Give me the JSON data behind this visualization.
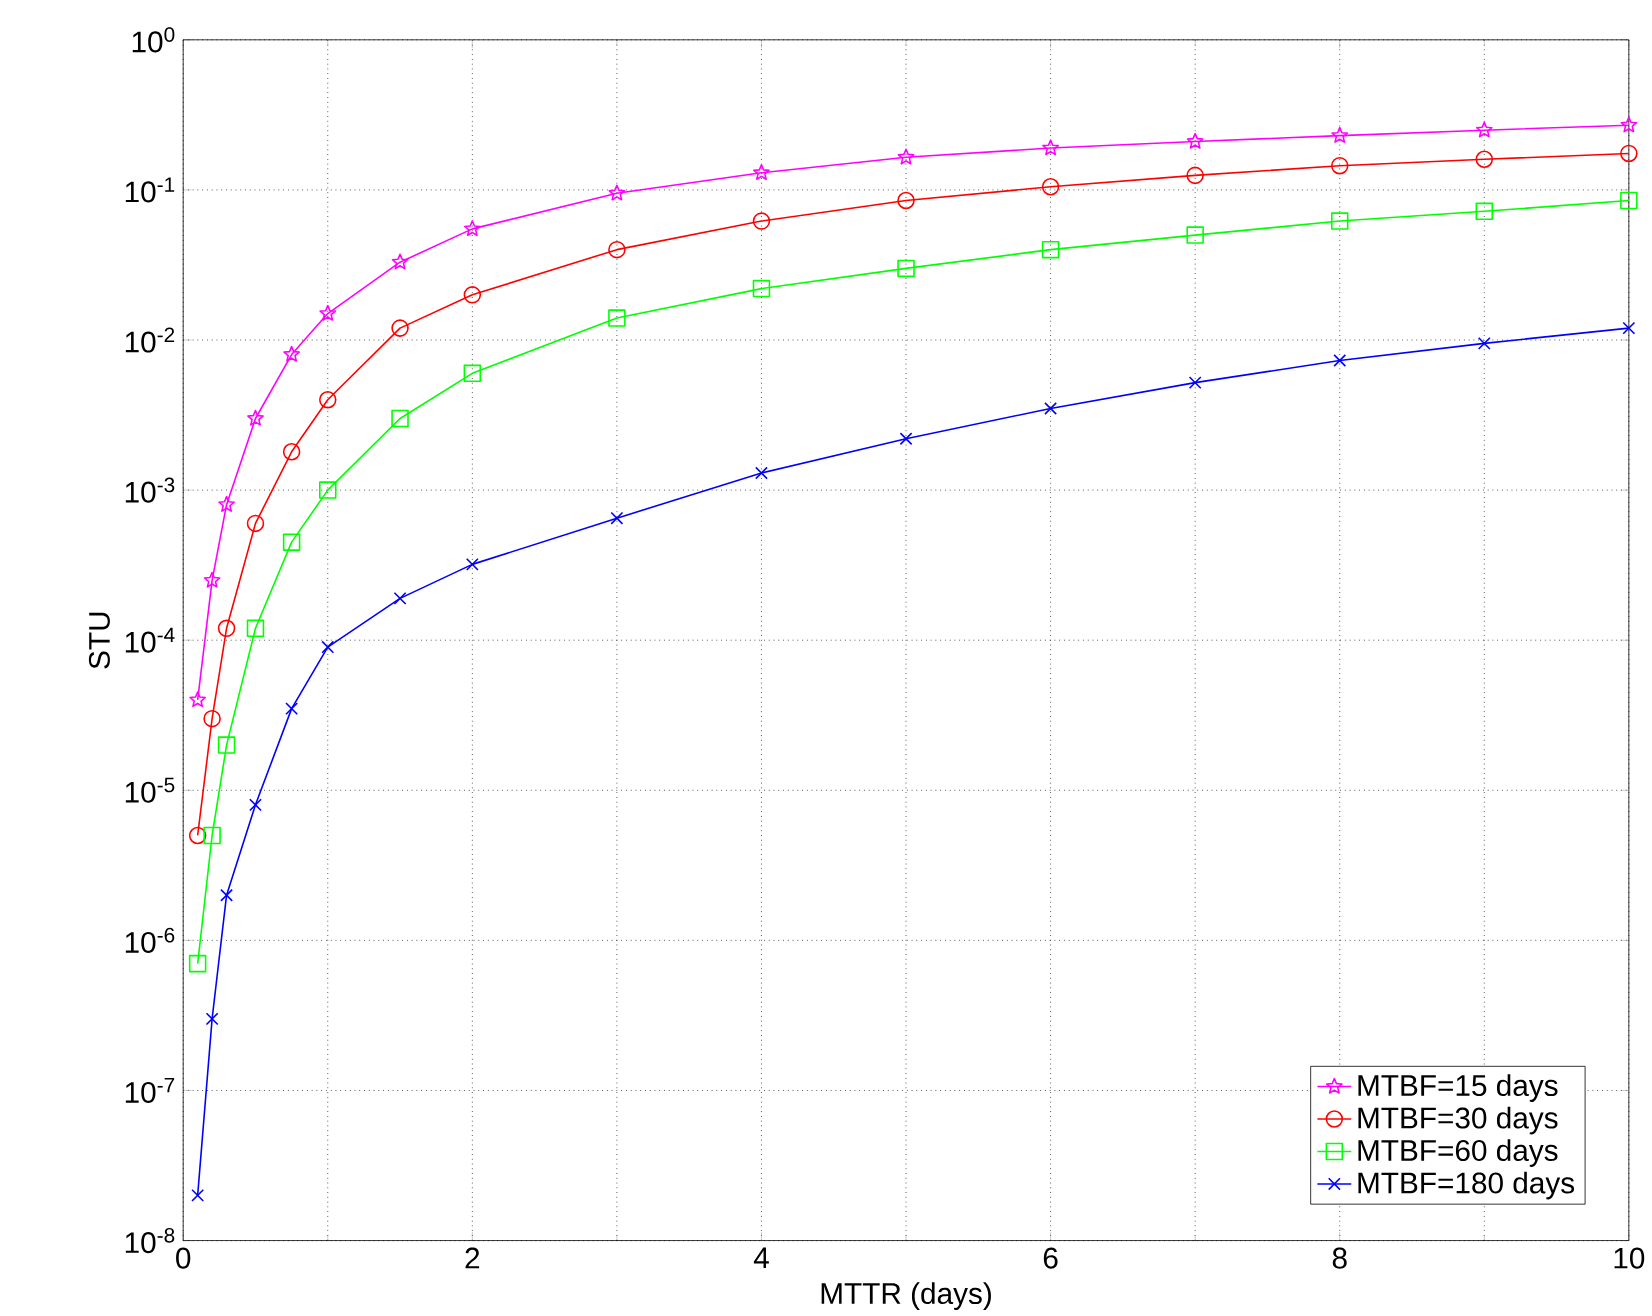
{
  "chart_data": {
    "type": "line",
    "xlabel": "MTTR (days)",
    "ylabel": "STU",
    "log": "y",
    "grid": true,
    "legend": "bottom right",
    "xlim": [
      0,
      10
    ],
    "ylim": [
      1e-08,
      1
    ],
    "xticks": [
      0,
      2,
      4,
      6,
      8,
      10
    ],
    "yticks": [
      {
        "value": 1e-08,
        "label": "10$^{-8}$"
      },
      {
        "value": 1e-07,
        "label": "10$^{-7}$"
      },
      {
        "value": 1e-06,
        "label": "10$^{-6}$"
      },
      {
        "value": 1e-05,
        "label": "10$^{-5}$"
      },
      {
        "value": 0.0001,
        "label": "10$^{-4}$"
      },
      {
        "value": 0.001,
        "label": "10$^{-3}$"
      },
      {
        "value": 0.01,
        "label": "10$^{-2}$"
      },
      {
        "value": 0.1,
        "label": "10$^{-1}$"
      },
      {
        "value": 1,
        "label": "10$^{0}$"
      }
    ],
    "x": [
      0.1,
      0.2,
      0.3,
      0.5,
      0.75,
      1,
      1.5,
      2,
      3,
      4,
      5,
      6,
      7,
      8,
      9,
      10
    ],
    "series": [
      {
        "name": "MTBF=15 days",
        "color": "#ff00ff",
        "marker": "star",
        "values": [
          4e-05,
          0.00025,
          0.0008,
          0.003,
          0.008,
          0.015,
          0.033,
          0.055,
          0.095,
          0.13,
          0.165,
          0.19,
          0.21,
          0.23,
          0.25,
          0.27
        ]
      },
      {
        "name": "MTBF=30 days",
        "color": "#ff0000",
        "marker": "circle",
        "values": [
          5e-06,
          3e-05,
          0.00012,
          0.0006,
          0.0018,
          0.004,
          0.012,
          0.02,
          0.04,
          0.062,
          0.085,
          0.105,
          0.125,
          0.145,
          0.16,
          0.175
        ]
      },
      {
        "name": "MTBF=60 days",
        "color": "#00ff00",
        "marker": "square",
        "values": [
          7e-07,
          5e-06,
          2e-05,
          0.00012,
          0.00045,
          0.001,
          0.003,
          0.006,
          0.014,
          0.022,
          0.03,
          0.04,
          0.05,
          0.062,
          0.072,
          0.085
        ]
      },
      {
        "name": "MTBF=180 days",
        "color": "#0000ff",
        "marker": "cross",
        "values": [
          2e-08,
          3e-07,
          2e-06,
          8e-06,
          3.5e-05,
          9e-05,
          0.00019,
          0.00032,
          0.00065,
          0.0013,
          0.0022,
          0.0035,
          0.0052,
          0.0073,
          0.0095,
          0.012
        ]
      }
    ]
  }
}
